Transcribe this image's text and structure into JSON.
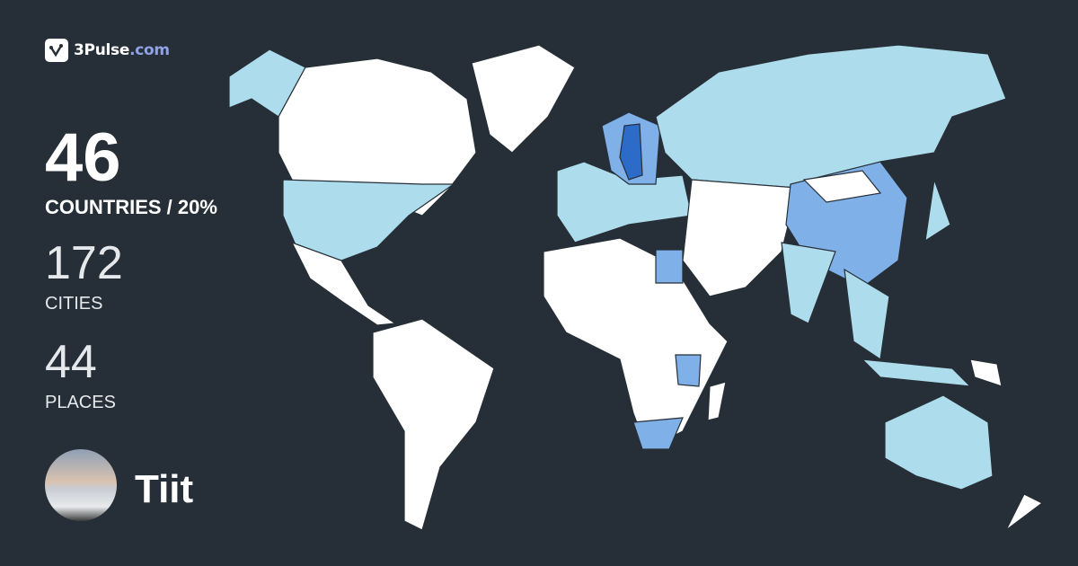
{
  "brand": {
    "name": "3Pulse",
    "tld": ".com",
    "accent": "#8fa3e6"
  },
  "stats": {
    "countries": {
      "value": "46",
      "label": "COUNTRIES / 20%"
    },
    "cities": {
      "value": "172",
      "label": "CITIES"
    },
    "places": {
      "value": "44",
      "label": "PLACES"
    }
  },
  "user": {
    "name": "Tiit"
  },
  "map": {
    "colors": {
      "background": "#262f37",
      "unvisited": "#ffffff",
      "visited_low": "#addcec",
      "visited_mid": "#7fb0e8",
      "visited_high": "#2d6bc9"
    }
  }
}
